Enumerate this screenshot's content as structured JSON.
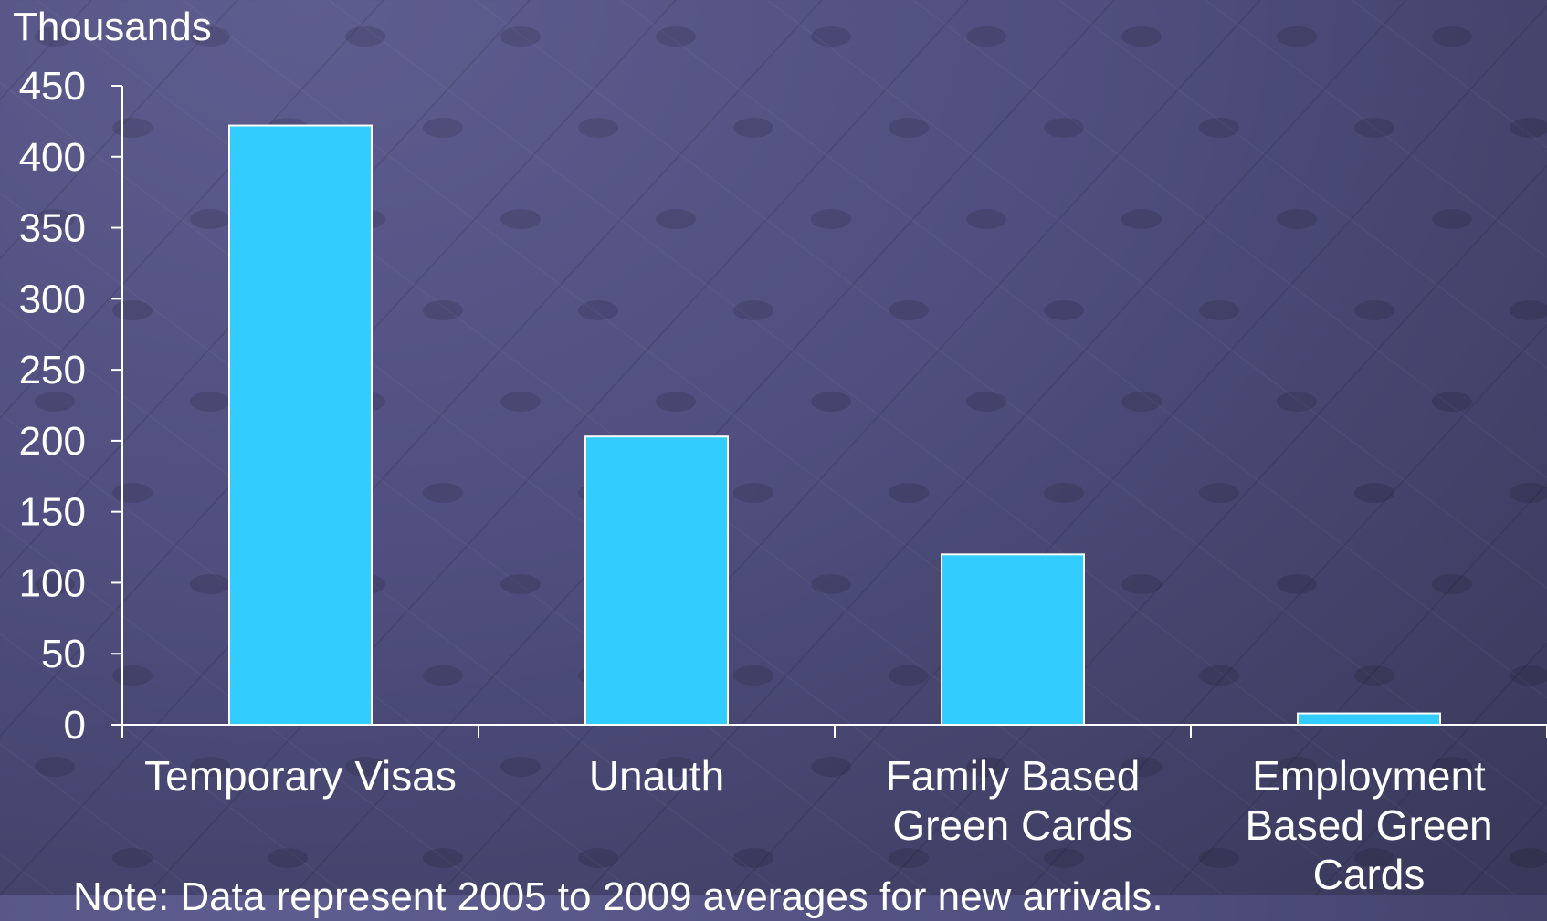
{
  "chart_data": {
    "type": "bar",
    "unit_label": "Thousands",
    "categories": [
      "Temporary Visas",
      "Unauth",
      "Family Based Green Cards",
      "Employment Based Green Cards"
    ],
    "category_lines": [
      [
        "Temporary Visas"
      ],
      [
        "Unauth"
      ],
      [
        "Family Based",
        "Green Cards"
      ],
      [
        "Employment",
        "Based Green",
        "Cards"
      ]
    ],
    "series": [
      {
        "values": [
          422,
          203,
          120,
          8
        ]
      }
    ],
    "ylim": [
      0,
      450
    ],
    "yticks": [
      "0",
      "50",
      "100",
      "150",
      "200",
      "250",
      "300",
      "350",
      "400",
      "450"
    ],
    "grid": false,
    "bar_color": "#33ccff",
    "bar_edge_color": "#ffffff",
    "axis_color": "#ffffff",
    "note": "Note: Data represent 2005 to 2009 averages for new arrivals."
  }
}
